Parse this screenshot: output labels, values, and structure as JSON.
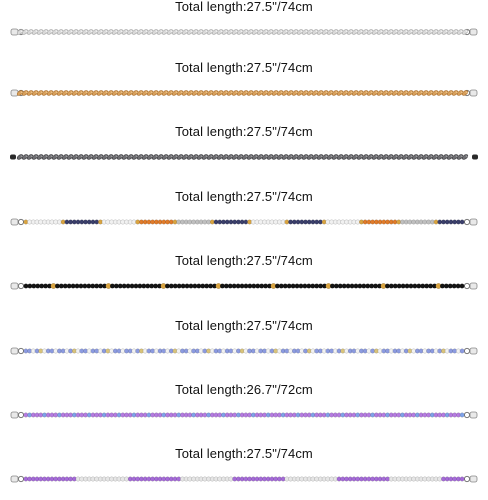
{
  "products": [
    {
      "length_label": "Total length:27.5\"/74cm",
      "style": "twisted-rope",
      "colors": {
        "main": "#d9d9d9",
        "dark": "#a5a5a5",
        "light": "#ffffff"
      }
    },
    {
      "length_label": "Total length:27.5\"/74cm",
      "style": "twisted-rope",
      "colors": {
        "main": "#d8a05c",
        "dark": "#a86e2d",
        "light": "#f6d8a8"
      }
    },
    {
      "length_label": "Total length:27.5\"/74cm",
      "style": "twisted-rope",
      "colors": {
        "main": "#6f6f73",
        "dark": "#3a3a3d",
        "light": "#b5b5b8"
      }
    },
    {
      "length_label": "Total length:27.5\"/74cm",
      "style": "multi-bead",
      "colors": {
        "base": "#f1f1f1",
        "accent1": "#3b3f6b",
        "accent2": "#e07b2a",
        "accent3": "#bfbfbf"
      }
    },
    {
      "length_label": "Total length:27.5\"/74cm",
      "style": "black-gold-bead",
      "colors": {
        "base": "#141414",
        "accent": "#d9a441"
      }
    },
    {
      "length_label": "Total length:27.5\"/74cm",
      "style": "blue-white-bead",
      "colors": {
        "base": "#8c9be0",
        "accent": "#f2f2f2",
        "dot": "#d9c37a"
      }
    },
    {
      "length_label": "Total length:26.7\"/72cm",
      "style": "purple-blue-bead",
      "colors": {
        "base": "#b57be0",
        "accent": "#7fa2e8"
      }
    },
    {
      "length_label": "Total length:27.5\"/74cm",
      "style": "purple-silver-bead",
      "colors": {
        "base": "#a56bd8",
        "accent": "#e6e6e6"
      }
    }
  ]
}
